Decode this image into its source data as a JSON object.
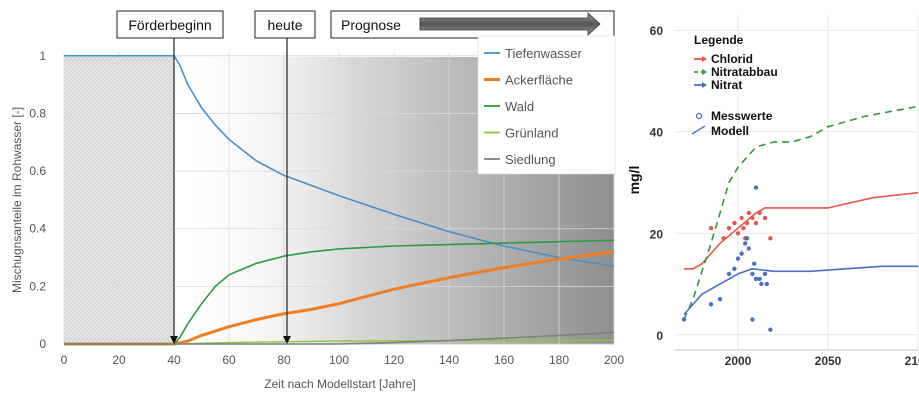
{
  "chart_data": [
    {
      "type": "line",
      "xlabel": "Zeit nach Modellstart [Jahre]",
      "ylabel": "Mischugnsanteile im Rohwasser [-]",
      "xlim": [
        0,
        200
      ],
      "ylim": [
        0,
        1.1
      ],
      "x_ticks": [
        "0",
        "20",
        "40",
        "60",
        "80",
        "100",
        "120",
        "140",
        "160",
        "180",
        "200"
      ],
      "y_ticks": [
        "0",
        "0.2",
        "0.4",
        "0.6",
        "0.8",
        "1"
      ],
      "grid": true,
      "legend_position": "top-right",
      "phases": [
        {
          "label": "Förderbeginn",
          "x": 40
        },
        {
          "label": "heute",
          "x": 81
        },
        {
          "label": "Prognose",
          "x_start": 100,
          "x_end": 200
        }
      ],
      "series": [
        {
          "name": "Tiefenwasser",
          "color": "#4a90c8",
          "points": [
            [
              0,
              1
            ],
            [
              20,
              1
            ],
            [
              40,
              1
            ],
            [
              42,
              0.97
            ],
            [
              45,
              0.9
            ],
            [
              50,
              0.82
            ],
            [
              55,
              0.76
            ],
            [
              60,
              0.71
            ],
            [
              70,
              0.635
            ],
            [
              80,
              0.585
            ],
            [
              90,
              0.55
            ],
            [
              100,
              0.515
            ],
            [
              120,
              0.45
            ],
            [
              140,
              0.39
            ],
            [
              160,
              0.34
            ],
            [
              180,
              0.3
            ],
            [
              200,
              0.27
            ]
          ]
        },
        {
          "name": "Ackerfläche",
          "color": "#ef7d22",
          "points": [
            [
              0,
              0
            ],
            [
              40,
              0
            ],
            [
              45,
              0.01
            ],
            [
              50,
              0.03
            ],
            [
              60,
              0.06
            ],
            [
              70,
              0.085
            ],
            [
              80,
              0.105
            ],
            [
              90,
              0.12
            ],
            [
              100,
              0.14
            ],
            [
              120,
              0.19
            ],
            [
              140,
              0.23
            ],
            [
              160,
              0.265
            ],
            [
              180,
              0.295
            ],
            [
              200,
              0.32
            ]
          ]
        },
        {
          "name": "Wald",
          "color": "#2e9a3e",
          "points": [
            [
              0,
              0
            ],
            [
              40,
              0
            ],
            [
              42,
              0.02
            ],
            [
              45,
              0.07
            ],
            [
              50,
              0.14
            ],
            [
              55,
              0.2
            ],
            [
              60,
              0.24
            ],
            [
              70,
              0.28
            ],
            [
              80,
              0.305
            ],
            [
              90,
              0.32
            ],
            [
              100,
              0.33
            ],
            [
              120,
              0.34
            ],
            [
              140,
              0.345
            ],
            [
              160,
              0.35
            ],
            [
              180,
              0.355
            ],
            [
              200,
              0.36
            ]
          ]
        },
        {
          "name": "Grünland",
          "color": "#8cc640",
          "points": [
            [
              0,
              0
            ],
            [
              40,
              0
            ],
            [
              60,
              0.005
            ],
            [
              80,
              0.008
            ],
            [
              100,
              0.01
            ],
            [
              150,
              0.012
            ],
            [
              200,
              0.013
            ]
          ]
        },
        {
          "name": "Siedlung",
          "color": "#7f7f7f",
          "points": [
            [
              0,
              0
            ],
            [
              100,
              0
            ],
            [
              120,
              0.005
            ],
            [
              140,
              0.012
            ],
            [
              160,
              0.02
            ],
            [
              180,
              0.03
            ],
            [
              200,
              0.04
            ]
          ]
        }
      ]
    },
    {
      "type": "scatter",
      "ylabel": "mg/l",
      "xlim": [
        1965,
        2100
      ],
      "ylim": [
        -3,
        63
      ],
      "x_ticks": [
        "2000",
        "2050",
        "2100"
      ],
      "y_ticks": [
        "0",
        "20",
        "40",
        "60"
      ],
      "grid": true,
      "legend": {
        "title": "Legende",
        "entries": [
          "Chlorid",
          "Nitratabbau",
          "Nitrat",
          "Messwerte",
          "Modell"
        ]
      },
      "series": [
        {
          "name": "Chlorid",
          "color": "#e8564b",
          "style": "solid",
          "points": [
            [
              1970,
              13
            ],
            [
              1975,
              13
            ],
            [
              1980,
              14
            ],
            [
              1990,
              18
            ],
            [
              2000,
              21
            ],
            [
              2005,
              22.5
            ],
            [
              2010,
              24
            ],
            [
              2015,
              25
            ],
            [
              2030,
              25
            ],
            [
              2050,
              25
            ],
            [
              2075,
              27
            ],
            [
              2100,
              28
            ]
          ],
          "measurements": [
            [
              1985,
              21
            ],
            [
              1992,
              19
            ],
            [
              1995,
              21
            ],
            [
              1998,
              22
            ],
            [
              2000,
              20
            ],
            [
              2002,
              23
            ],
            [
              2003,
              21
            ],
            [
              2005,
              22
            ],
            [
              2006,
              24
            ],
            [
              2008,
              23
            ],
            [
              2010,
              22
            ],
            [
              2012,
              24
            ],
            [
              2015,
              23
            ],
            [
              2018,
              19
            ],
            [
              2004,
              19
            ]
          ]
        },
        {
          "name": "Nitratabbau",
          "color": "#2e9a3e",
          "style": "dashed",
          "points": [
            [
              1970,
              3
            ],
            [
              1975,
              7
            ],
            [
              1985,
              18
            ],
            [
              1990,
              24
            ],
            [
              1995,
              30
            ],
            [
              2000,
              33
            ],
            [
              2010,
              37
            ],
            [
              2020,
              38
            ],
            [
              2030,
              38
            ],
            [
              2040,
              39
            ],
            [
              2050,
              41
            ],
            [
              2060,
              42
            ],
            [
              2070,
              43
            ],
            [
              2085,
              44
            ],
            [
              2100,
              45
            ]
          ]
        },
        {
          "name": "Nitrat",
          "color": "#4a72c4",
          "style": "solid",
          "points": [
            [
              1970,
              4
            ],
            [
              1980,
              8
            ],
            [
              1990,
              10
            ],
            [
              2000,
              12
            ],
            [
              2008,
              13
            ],
            [
              2020,
              12.5
            ],
            [
              2040,
              12.5
            ],
            [
              2060,
              13
            ],
            [
              2080,
              13.5
            ],
            [
              2100,
              13.5
            ]
          ],
          "measurements": [
            [
              1970,
              3
            ],
            [
              1985,
              6
            ],
            [
              1990,
              7
            ],
            [
              1995,
              12
            ],
            [
              1998,
              13
            ],
            [
              2000,
              15
            ],
            [
              2002,
              16
            ],
            [
              2004,
              18
            ],
            [
              2005,
              19
            ],
            [
              2006,
              17
            ],
            [
              2008,
              12
            ],
            [
              2009,
              14
            ],
            [
              2010,
              11
            ],
            [
              2010,
              29
            ],
            [
              2012,
              11
            ],
            [
              2013,
              10
            ],
            [
              2015,
              12
            ],
            [
              2016,
              10
            ],
            [
              2018,
              1
            ],
            [
              2008,
              3
            ]
          ]
        }
      ]
    }
  ]
}
